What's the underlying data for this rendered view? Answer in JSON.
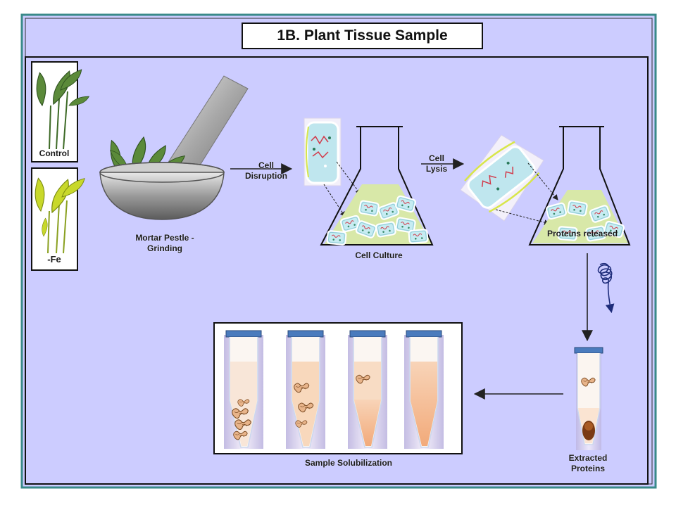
{
  "title": "1B. Plant Tissue Sample",
  "labels": {
    "control": "Control",
    "fe": "-Fe",
    "mortar_line1": "Mortar Pestle -",
    "mortar_line2": "Grinding",
    "disruption_line1": "Cell",
    "disruption_line2": "Disruption",
    "cell_culture": "Cell Culture",
    "lysis_line1": "Cell",
    "lysis_line2": "Lysis",
    "proteins_released": "Proteins released",
    "extracted_line1": "Extracted",
    "extracted_line2": "Proteins",
    "solubilization": "Sample Solubilization"
  },
  "colors": {
    "panel_fill": "#ccccff",
    "panel_border": "#3a8a8a",
    "leaf_green": "#5b8a3a",
    "leaf_yellow": "#c8d82a",
    "culture_green": "#d8e8a8",
    "cell_blue": "#bfe6ee",
    "tube_cap": "#4a7bbd",
    "solution_peach": "#f6c09a"
  }
}
